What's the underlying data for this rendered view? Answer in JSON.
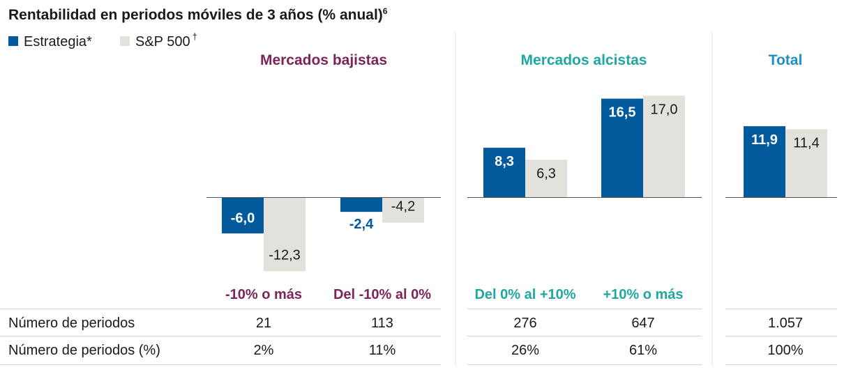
{
  "title": "Rentabilidad en periodos móviles de 3 años (% anual)",
  "title_superscript": "6",
  "legend": [
    {
      "label": "Estrategia*",
      "color": "#005A9C"
    },
    {
      "label": "S&P 500",
      "sup": "†",
      "color": "#E3E1DB"
    }
  ],
  "colors": {
    "estrategia": "#005A9C",
    "sp500": "#E3E1DB",
    "bear": "#7B2559",
    "bull": "#1FA8A0",
    "total": "#1E90C8"
  },
  "chart_data": {
    "type": "bar",
    "sections": [
      {
        "name": "Mercados bajistas",
        "color_key": "bear",
        "categories": [
          "-10% o más",
          "Del -10% al 0%"
        ]
      },
      {
        "name": "Mercados alcistas",
        "color_key": "bull",
        "categories": [
          "Del 0% al +10%",
          "+10% o más"
        ]
      },
      {
        "name": "Total",
        "color_key": "total",
        "categories": [
          ""
        ]
      }
    ],
    "categories": [
      "-10% o más",
      "Del -10% al 0%",
      "Del 0% al +10%",
      "+10% o más",
      "Total"
    ],
    "series": [
      {
        "name": "Estrategia*",
        "values": [
          -6.0,
          -2.4,
          8.3,
          16.5,
          11.9
        ],
        "labels": [
          "-6,0",
          "-2,4",
          "8,3",
          "16,5",
          "11,9"
        ]
      },
      {
        "name": "S&P 500†",
        "values": [
          -12.3,
          -4.2,
          6.3,
          17.0,
          11.4
        ],
        "labels": [
          "-12,3",
          "-4,2",
          "6,3",
          "17,0",
          "11,4"
        ]
      }
    ]
  },
  "table": {
    "rows": [
      {
        "label": "Número de periodos",
        "values": [
          "21",
          "113",
          "276",
          "647",
          "1.057"
        ]
      },
      {
        "label": "Número de periodos (%)",
        "values": [
          "2%",
          "11%",
          "26%",
          "61%",
          "100%"
        ]
      }
    ]
  }
}
